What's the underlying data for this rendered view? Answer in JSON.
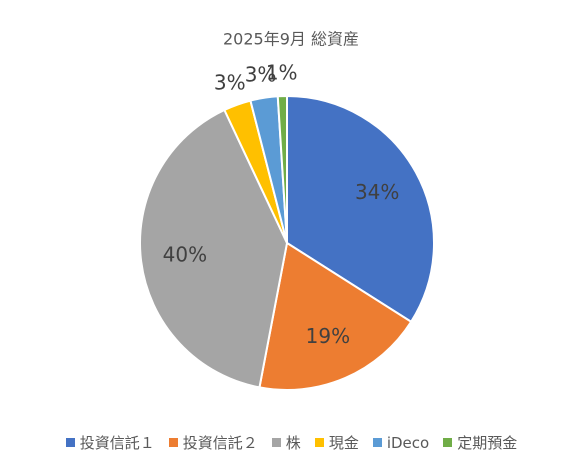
{
  "chart_data": {
    "type": "pie",
    "title": "2025年9月 総資産",
    "categories": [
      "投資信託１",
      "投資信託２",
      "株",
      "現金",
      "iDeco",
      "定期預金"
    ],
    "values": [
      34,
      19,
      40,
      3,
      3,
      1
    ],
    "value_labels": [
      "34%",
      "19%",
      "40%",
      "3%",
      "3%",
      "1%"
    ],
    "colors": [
      "#4472c4",
      "#ed7d31",
      "#a5a5a5",
      "#ffc000",
      "#5b9bd5",
      "#70ad47"
    ],
    "legend": "bottom"
  }
}
